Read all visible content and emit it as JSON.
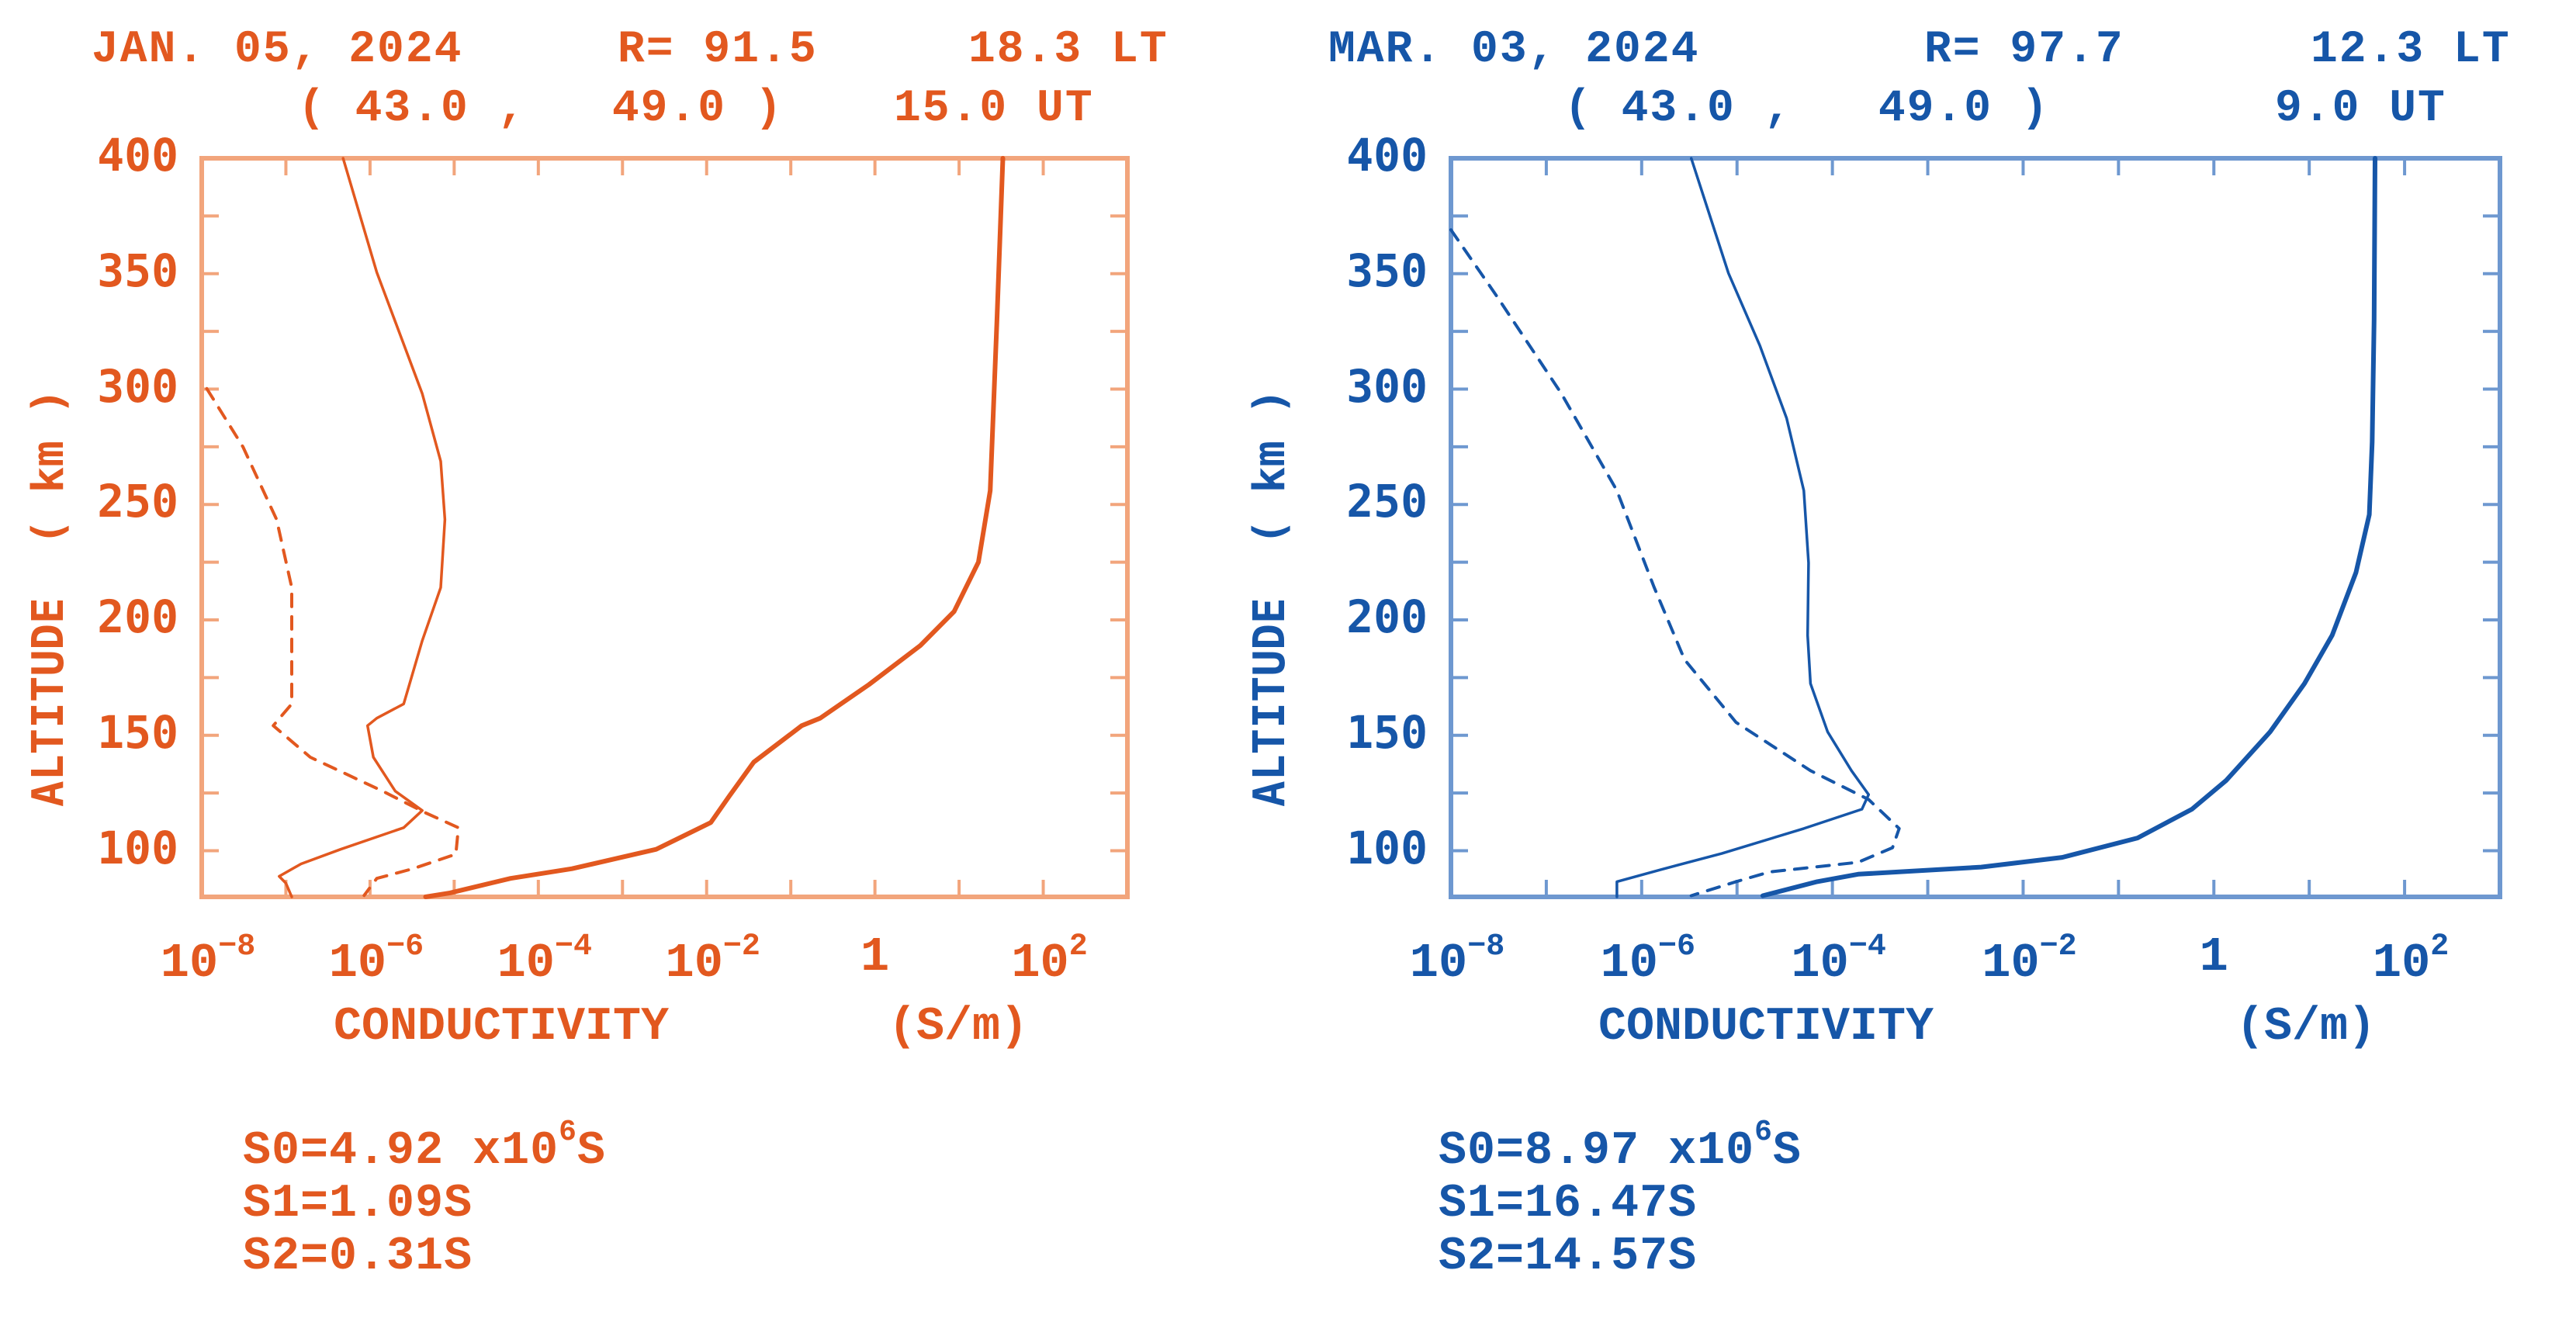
{
  "panels": [
    {
      "id": "left",
      "color": "#E2581F",
      "frame_color": "#F2A57C",
      "header": {
        "date": "JAN. 05, 2024",
        "r_value": "R= 91.5",
        "lt": "18.3 LT",
        "coords": "( 43.0 ,   49.0 )",
        "ut": "15.0 UT"
      },
      "y_axis_title": "ALTITUDE  ( km )",
      "x_axis_title": "CONDUCTIVITY",
      "x_axis_unit": "(S/m)",
      "sums": {
        "s0_prefix": "S0=4.92 x10",
        "s0_exp": "6",
        "s0_suffix": "S",
        "s1": "S1=1.09S",
        "s2": "S2=0.31S"
      }
    },
    {
      "id": "right",
      "color": "#1656A8",
      "frame_color": "#6E98D0",
      "header": {
        "date": "MAR. 03, 2024",
        "r_value": "R= 97.7",
        "lt": "12.3 LT",
        "coords": "( 43.0 ,   49.0 )",
        "ut": "9.0 UT"
      },
      "y_axis_title": "ALTITUDE  ( km )",
      "x_axis_title": "CONDUCTIVITY",
      "x_axis_unit": "(S/m)",
      "sums": {
        "s0_prefix": "S0=8.97 x10",
        "s0_exp": "6",
        "s0_suffix": "S",
        "s1": "S1=16.47S",
        "s2": "S2=14.57S"
      }
    }
  ],
  "chart_data": [
    {
      "type": "line",
      "title": "JAN. 05, 2024  R=91.5  18.3 LT  (43.0, 49.0)  15.0 UT",
      "xlabel": "CONDUCTIVITY (S/m)",
      "ylabel": "ALTITUDE ( km )",
      "x_scale": "log10",
      "xlim_log10": [
        -8,
        3
      ],
      "ylim": [
        80,
        400
      ],
      "x_tick_labels": [
        {
          "log10": -8,
          "base": "10",
          "exp": "-8"
        },
        {
          "log10": -6,
          "base": "10",
          "exp": "-6"
        },
        {
          "log10": -4,
          "base": "10",
          "exp": "-4"
        },
        {
          "log10": -2,
          "base": "10",
          "exp": "-2"
        },
        {
          "log10": 0,
          "base": "1",
          "exp": ""
        },
        {
          "log10": 2,
          "base": "10",
          "exp": "2"
        }
      ],
      "x_minor_ticks_log10": [
        -7,
        -6,
        -5,
        -4,
        -3,
        -2,
        -1,
        0,
        1,
        2
      ],
      "y_tick_labels": [
        400,
        350,
        300,
        250,
        200,
        150,
        100
      ],
      "y_minor_ticks": [
        375,
        350,
        325,
        300,
        275,
        250,
        225,
        200,
        175,
        150,
        125,
        100
      ],
      "grid": false,
      "legend": null,
      "series": [
        {
          "name": "thick-solid",
          "style": "solid-thick",
          "points_log10x_alt": [
            [
              1.52,
              400
            ],
            [
              1.45,
              330
            ],
            [
              1.37,
              256
            ],
            [
              1.23,
              225
            ],
            [
              0.94,
              203.6
            ],
            [
              0.54,
              188.9
            ],
            [
              -0.07,
              172
            ],
            [
              -0.65,
              157.4
            ],
            [
              -0.87,
              154.2
            ],
            [
              -1.44,
              138.4
            ],
            [
              -1.73,
              123.7
            ],
            [
              -1.95,
              112.2
            ],
            [
              -2.6,
              100.6
            ],
            [
              -3.6,
              92.2
            ],
            [
              -4.33,
              88
            ],
            [
              -5.05,
              81.7
            ],
            [
              -5.34,
              80
            ]
          ]
        },
        {
          "name": "thin-solid",
          "style": "solid-thin",
          "points_log10x_alt": [
            [
              -6.32,
              400
            ],
            [
              -5.92,
              350.6
            ],
            [
              -5.38,
              298
            ],
            [
              -5.16,
              268.7
            ],
            [
              -5.11,
              243.5
            ],
            [
              -5.16,
              214
            ],
            [
              -5.38,
              191
            ],
            [
              -5.6,
              163.6
            ],
            [
              -5.92,
              157.4
            ],
            [
              -6.03,
              154.2
            ],
            [
              -5.96,
              140.5
            ],
            [
              -5.7,
              125.8
            ],
            [
              -5.38,
              117.4
            ],
            [
              -5.6,
              110
            ],
            [
              -6.35,
              100.6
            ],
            [
              -6.82,
              94.3
            ],
            [
              -7.08,
              88.9
            ],
            [
              -7.0,
              85.9
            ],
            [
              -6.93,
              80
            ]
          ]
        },
        {
          "name": "dashed",
          "style": "dashed",
          "points_log10x_alt": [
            [
              -7.94,
              300.2
            ],
            [
              -7.51,
              275
            ],
            [
              -7.11,
              243.5
            ],
            [
              -6.93,
              214
            ],
            [
              -6.93,
              186.8
            ],
            [
              -6.93,
              163.6
            ],
            [
              -7.15,
              154.2
            ],
            [
              -6.71,
              140.5
            ],
            [
              -5.85,
              125.8
            ],
            [
              -5.34,
              116.4
            ],
            [
              -4.95,
              110
            ],
            [
              -4.98,
              98.5
            ],
            [
              -5.49,
              92.2
            ],
            [
              -5.92,
              88
            ],
            [
              -6.07,
              80.6
            ]
          ]
        }
      ],
      "annotations": [
        "S0=4.92 x10^6 S",
        "S1=1.09S",
        "S2=0.31S"
      ]
    },
    {
      "type": "line",
      "title": "MAR. 03, 2024  R=97.7  12.3 LT  (43.0, 49.0)  9.0 UT",
      "xlabel": "CONDUCTIVITY (S/m)",
      "ylabel": "ALTITUDE ( km )",
      "x_scale": "log10",
      "xlim_log10": [
        -8,
        3
      ],
      "ylim": [
        80,
        400
      ],
      "x_tick_labels": [
        {
          "log10": -8,
          "base": "10",
          "exp": "-8"
        },
        {
          "log10": -6,
          "base": "10",
          "exp": "-6"
        },
        {
          "log10": -4,
          "base": "10",
          "exp": "-4"
        },
        {
          "log10": -2,
          "base": "10",
          "exp": "-2"
        },
        {
          "log10": 0,
          "base": "1",
          "exp": ""
        },
        {
          "log10": 2,
          "base": "10",
          "exp": "2"
        }
      ],
      "x_minor_ticks_log10": [
        -7,
        -6,
        -5,
        -4,
        -3,
        -2,
        -1,
        0,
        1,
        2
      ],
      "y_tick_labels": [
        400,
        350,
        300,
        250,
        200,
        150,
        100
      ],
      "y_minor_ticks": [
        375,
        350,
        325,
        300,
        275,
        250,
        225,
        200,
        175,
        150,
        125,
        100
      ],
      "grid": false,
      "legend": null,
      "series": [
        {
          "name": "thick-solid",
          "style": "solid-thick",
          "points_log10x_alt": [
            [
              1.69,
              400
            ],
            [
              1.68,
              330
            ],
            [
              1.66,
              277
            ],
            [
              1.63,
              245.6
            ],
            [
              1.49,
              220.5
            ],
            [
              1.24,
              193.3
            ],
            [
              0.95,
              172.4
            ],
            [
              0.59,
              151.5
            ],
            [
              0.13,
              130.5
            ],
            [
              -0.23,
              118
            ],
            [
              -0.8,
              105.5
            ],
            [
              -1.59,
              97.1
            ],
            [
              -2.44,
              92.9
            ],
            [
              -3.73,
              89.8
            ],
            [
              -4.16,
              86.6
            ],
            [
              -4.73,
              80.5
            ]
          ]
        },
        {
          "name": "thin-solid",
          "style": "solid-thin",
          "points_log10x_alt": [
            [
              -5.48,
              400
            ],
            [
              -5.09,
              350.2
            ],
            [
              -4.76,
              318.8
            ],
            [
              -4.48,
              287.4
            ],
            [
              -4.3,
              256
            ],
            [
              -4.25,
              224.7
            ],
            [
              -4.26,
              193.3
            ],
            [
              -4.23,
              172.4
            ],
            [
              -4.05,
              151.5
            ],
            [
              -3.8,
              134.7
            ],
            [
              -3.62,
              124.3
            ],
            [
              -3.69,
              118
            ],
            [
              -4.3,
              109.6
            ],
            [
              -5.16,
              98.8
            ],
            [
              -5.8,
              91.8
            ],
            [
              -6.26,
              86.6
            ],
            [
              -6.26,
              80
            ]
          ]
        },
        {
          "name": "dashed",
          "style": "dashed",
          "points_log10x_alt": [
            [
              -8.0,
              369
            ],
            [
              -7.51,
              339.7
            ],
            [
              -6.84,
              297.9
            ],
            [
              -6.26,
              256
            ],
            [
              -5.87,
              214.2
            ],
            [
              -5.55,
              182.8
            ],
            [
              -5.01,
              155.6
            ],
            [
              -4.23,
              134.7
            ],
            [
              -3.62,
              122.2
            ],
            [
              -3.3,
              109.6
            ],
            [
              -3.37,
              101.3
            ],
            [
              -3.73,
              95
            ],
            [
              -4.66,
              90.8
            ],
            [
              -5.01,
              86.6
            ],
            [
              -5.48,
              80.5
            ]
          ]
        }
      ],
      "annotations": [
        "S0=8.97 x10^6 S",
        "S1=16.47S",
        "S2=14.57S"
      ]
    }
  ]
}
